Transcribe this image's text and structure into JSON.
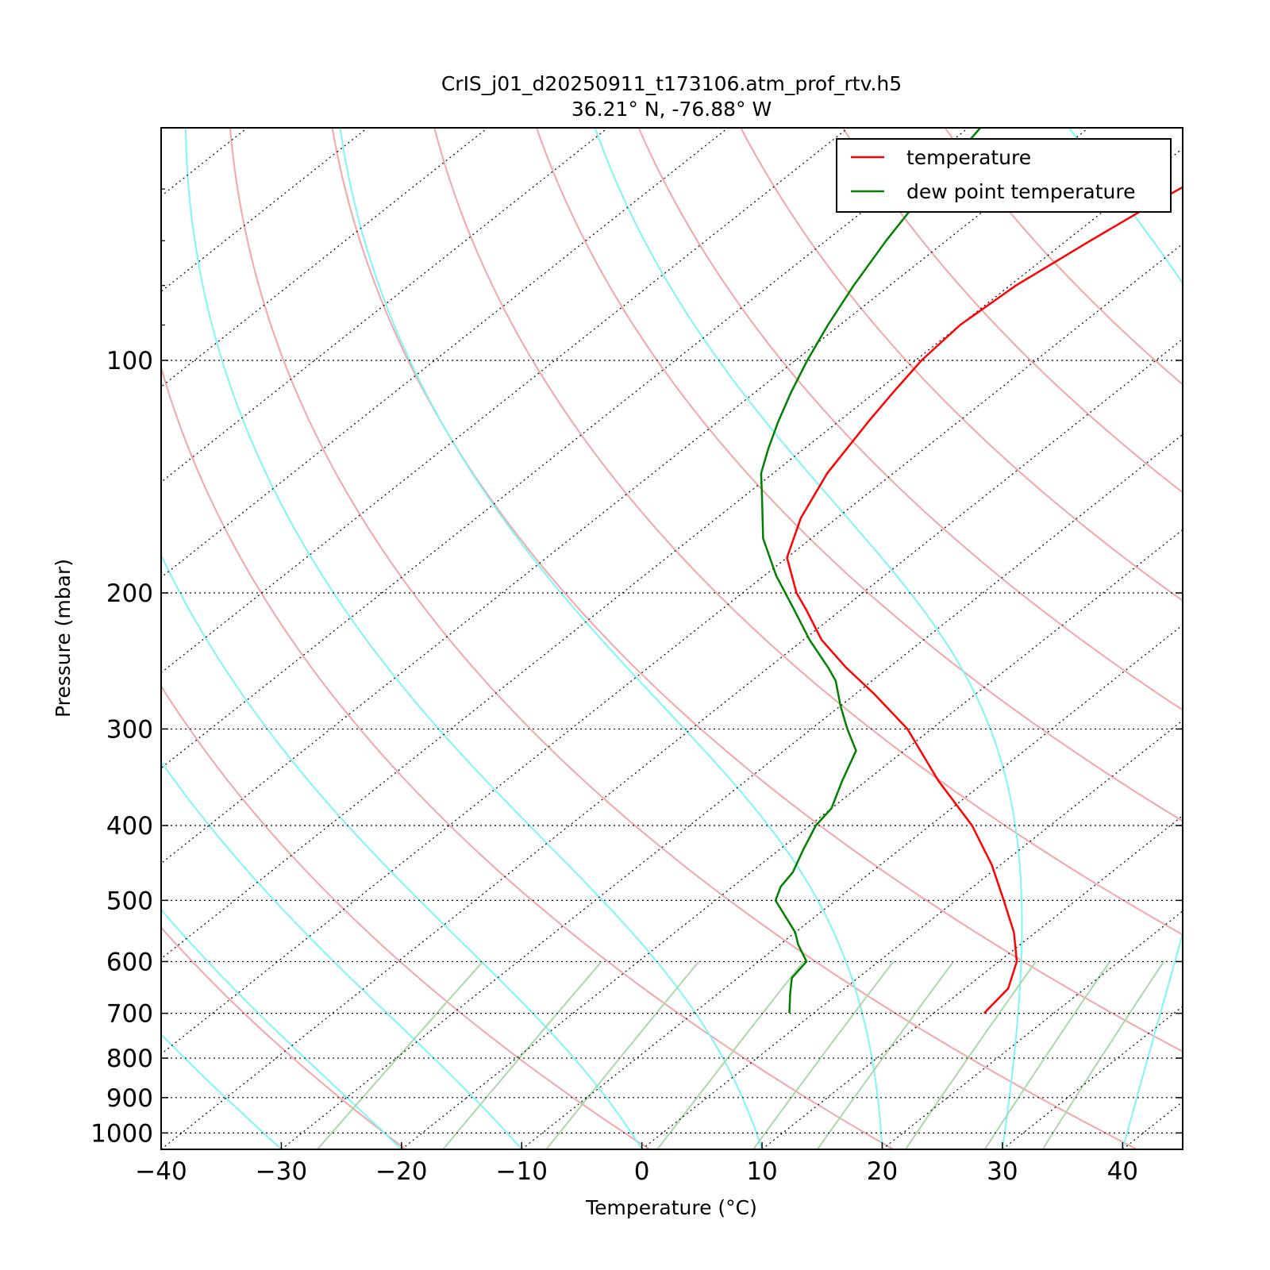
{
  "chart_data": {
    "type": "line",
    "title": "CrIS_j01_d20250911_t173106.atm_prof_rtv.h5",
    "subtitle": "36.21° N, -76.88° W",
    "xlabel": "Temperature (°C)",
    "ylabel": "Pressure (mbar)",
    "xlim": [
      -40,
      45
    ],
    "ylim": [
      1050,
      50
    ],
    "y_scale": "log",
    "skew": true,
    "x_ticks": [
      -40,
      -30,
      -20,
      -10,
      0,
      10,
      20,
      30,
      40
    ],
    "y_ticks": [
      100,
      200,
      300,
      400,
      500,
      600,
      700,
      800,
      900,
      1000
    ],
    "legend": "top-right",
    "isotherm_grid": true,
    "isobar_grid": true,
    "background_lines": {
      "dry_adiabats_theta_K": [
        250,
        270,
        290,
        310,
        330,
        350,
        370,
        390,
        410,
        430,
        450
      ],
      "moist_adiabats_start_C": [
        -40,
        -30,
        -20,
        -10,
        0,
        10,
        20,
        30,
        40
      ],
      "mixing_ratio_g_kg": [
        0.4,
        1,
        2,
        4,
        7,
        10,
        16,
        24,
        32
      ],
      "dry_adiabat_color": "#f4a6a6",
      "moist_adiabat_color": "#7ff5f5",
      "mixing_ratio_color": "#a9d8a9"
    },
    "series": [
      {
        "name": "temperature",
        "color": "#ff0000",
        "points": [
          {
            "p": 700,
            "t": 14.2
          },
          {
            "p": 650,
            "t": 13.6
          },
          {
            "p": 600,
            "t": 11.5
          },
          {
            "p": 550,
            "t": 8.2
          },
          {
            "p": 500,
            "t": 4.0
          },
          {
            "p": 450,
            "t": -0.7
          },
          {
            "p": 400,
            "t": -6.5
          },
          {
            "p": 350,
            "t": -14.0
          },
          {
            "p": 300,
            "t": -22.0
          },
          {
            "p": 270,
            "t": -28.5
          },
          {
            "p": 250,
            "t": -33.5
          },
          {
            "p": 230,
            "t": -38.5
          },
          {
            "p": 210,
            "t": -43.0
          },
          {
            "p": 200,
            "t": -45.5
          },
          {
            "p": 180,
            "t": -50.0
          },
          {
            "p": 160,
            "t": -53.0
          },
          {
            "p": 140,
            "t": -55.5
          },
          {
            "p": 120,
            "t": -57.5
          },
          {
            "p": 110,
            "t": -58.5
          },
          {
            "p": 100,
            "t": -59.5
          },
          {
            "p": 90,
            "t": -60.0
          },
          {
            "p": 80,
            "t": -59.5
          },
          {
            "p": 70,
            "t": -58.0
          },
          {
            "p": 62,
            "t": -56.5
          },
          {
            "p": 56,
            "t": -55.0
          },
          {
            "p": 50,
            "t": -53.5
          }
        ]
      },
      {
        "name": "dew point temperature",
        "color": "#008000",
        "points": [
          {
            "p": 700,
            "t": -2.0
          },
          {
            "p": 660,
            "t": -4.0
          },
          {
            "p": 630,
            "t": -5.5
          },
          {
            "p": 600,
            "t": -6.0
          },
          {
            "p": 570,
            "t": -8.5
          },
          {
            "p": 550,
            "t": -10.0
          },
          {
            "p": 500,
            "t": -15.0
          },
          {
            "p": 480,
            "t": -16.0
          },
          {
            "p": 460,
            "t": -16.5
          },
          {
            "p": 430,
            "t": -18.0
          },
          {
            "p": 400,
            "t": -19.5
          },
          {
            "p": 380,
            "t": -20.0
          },
          {
            "p": 350,
            "t": -22.0
          },
          {
            "p": 320,
            "t": -24.0
          },
          {
            "p": 300,
            "t": -27.0
          },
          {
            "p": 280,
            "t": -30.0
          },
          {
            "p": 260,
            "t": -33.0
          },
          {
            "p": 250,
            "t": -35.0
          },
          {
            "p": 230,
            "t": -39.5
          },
          {
            "p": 210,
            "t": -44.0
          },
          {
            "p": 190,
            "t": -49.0
          },
          {
            "p": 170,
            "t": -54.0
          },
          {
            "p": 150,
            "t": -58.5
          },
          {
            "p": 140,
            "t": -61.0
          },
          {
            "p": 130,
            "t": -63.0
          },
          {
            "p": 120,
            "t": -65.0
          },
          {
            "p": 110,
            "t": -67.0
          },
          {
            "p": 100,
            "t": -69.0
          },
          {
            "p": 90,
            "t": -71.0
          },
          {
            "p": 80,
            "t": -73.0
          },
          {
            "p": 70,
            "t": -75.0
          },
          {
            "p": 60,
            "t": -77.0
          },
          {
            "p": 50,
            "t": -79.0
          }
        ]
      }
    ]
  }
}
